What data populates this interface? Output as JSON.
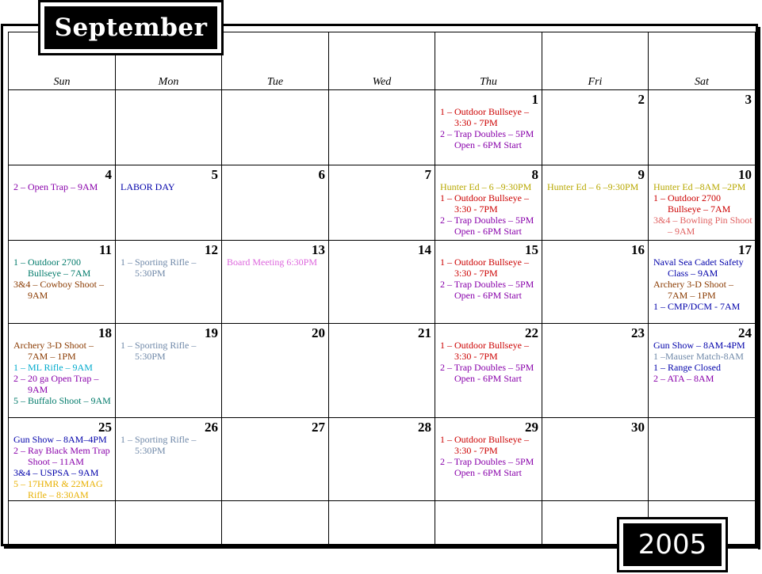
{
  "month": "September",
  "year": "2005",
  "days_of_week": [
    "Sun",
    "Mon",
    "Tue",
    "Wed",
    "Thu",
    "Fri",
    "Sat"
  ],
  "colors": {
    "red": "#cc0000",
    "purple": "#8800aa",
    "blue": "#0000aa",
    "olive": "#b8a800",
    "pink": "#e06060",
    "teal": "#007a6a",
    "brown": "#8a3a00",
    "gray": "#6f88a8",
    "magenta": "#dd66dd",
    "cyan": "#00aacc",
    "orange": "#e8b000"
  },
  "weeks": [
    [
      {
        "day": "",
        "events": []
      },
      {
        "day": "",
        "events": []
      },
      {
        "day": "",
        "events": []
      },
      {
        "day": "",
        "events": []
      },
      {
        "day": "1",
        "events": [
          {
            "text": "1 – Outdoor Bullseye – 3:30 - 7PM",
            "color": "red"
          },
          {
            "text": "2 – Trap Doubles – 5PM Open - 6PM Start",
            "color": "purple"
          }
        ]
      },
      {
        "day": "2",
        "events": []
      },
      {
        "day": "3",
        "events": []
      }
    ],
    [
      {
        "day": "4",
        "events": [
          {
            "text": "2 – Open Trap – 9AM",
            "color": "purple"
          }
        ]
      },
      {
        "day": "5",
        "events": [
          {
            "text": "LABOR DAY",
            "color": "blue"
          }
        ]
      },
      {
        "day": "6",
        "events": []
      },
      {
        "day": "7",
        "events": []
      },
      {
        "day": "8",
        "events": [
          {
            "text": "Hunter Ed – 6 –9:30PM",
            "color": "olive"
          },
          {
            "text": "1 – Outdoor Bullseye – 3:30 - 7PM",
            "color": "red"
          },
          {
            "text": "2 – Trap Doubles – 5PM Open - 6PM Start",
            "color": "purple"
          }
        ]
      },
      {
        "day": "9",
        "events": [
          {
            "text": "Hunter Ed – 6 –9:30PM",
            "color": "olive"
          }
        ]
      },
      {
        "day": "10",
        "events": [
          {
            "text": "Hunter Ed –8AM –2PM",
            "color": "olive"
          },
          {
            "text": "1 – Outdoor 2700 Bullseye – 7AM",
            "color": "red"
          },
          {
            "text": "3&4 – Bowling Pin Shoot – 9AM",
            "color": "pink"
          }
        ]
      }
    ],
    [
      {
        "day": "11",
        "events": [
          {
            "text": "1 – Outdoor 2700 Bullseye – 7AM",
            "color": "teal"
          },
          {
            "text": "3&4 – Cowboy Shoot – 9AM",
            "color": "brown"
          }
        ]
      },
      {
        "day": "12",
        "events": [
          {
            "text": "1 – Sporting Rifle – 5:30PM",
            "color": "gray"
          }
        ]
      },
      {
        "day": "13",
        "events": [
          {
            "text": "Board Meeting 6:30PM",
            "color": "magenta"
          }
        ]
      },
      {
        "day": "14",
        "events": []
      },
      {
        "day": "15",
        "events": [
          {
            "text": "1 – Outdoor Bullseye – 3:30 - 7PM",
            "color": "red"
          },
          {
            "text": "2 – Trap Doubles – 5PM Open - 6PM Start",
            "color": "purple"
          }
        ]
      },
      {
        "day": "16",
        "events": []
      },
      {
        "day": "17",
        "events": [
          {
            "text": "Naval Sea Cadet Safety Class – 9AM",
            "color": "blue"
          },
          {
            "text": "Archery 3-D Shoot – 7AM – 1PM",
            "color": "brown"
          },
          {
            "text": "1 – CMP/DCM - 7AM",
            "color": "blue"
          }
        ]
      }
    ],
    [
      {
        "day": "18",
        "events": [
          {
            "text": "Archery 3-D Shoot – 7AM – 1PM",
            "color": "brown"
          },
          {
            "text": "1 – ML Rifle – 9AM",
            "color": "cyan"
          },
          {
            "text": "2 – 20 ga Open Trap – 9AM",
            "color": "purple"
          },
          {
            "text": "5 – Buffalo Shoot – 9AM",
            "color": "teal"
          }
        ]
      },
      {
        "day": "19",
        "events": [
          {
            "text": "1 – Sporting Rifle – 5:30PM",
            "color": "gray"
          }
        ]
      },
      {
        "day": "20",
        "events": []
      },
      {
        "day": "21",
        "events": []
      },
      {
        "day": "22",
        "events": [
          {
            "text": "1 – Outdoor Bullseye – 3:30 - 7PM",
            "color": "red"
          },
          {
            "text": "2 – Trap Doubles – 5PM Open - 6PM Start",
            "color": "purple"
          }
        ]
      },
      {
        "day": "23",
        "events": []
      },
      {
        "day": "24",
        "events": [
          {
            "text": "Gun Show – 8AM-4PM",
            "color": "blue"
          },
          {
            "text": "1 –Mauser Match-8AM",
            "color": "gray"
          },
          {
            "text": "1 – Range Closed",
            "color": "blue"
          },
          {
            "text": "2 – ATA – 8AM",
            "color": "purple"
          }
        ]
      }
    ],
    [
      {
        "day": "25",
        "events": [
          {
            "text": "Gun Show – 8AM–4PM",
            "color": "blue"
          },
          {
            "text": "2 – Ray Black Mem Trap Shoot – 11AM",
            "color": "purple"
          },
          {
            "text": "3&4 – USPSA – 9AM",
            "color": "blue"
          },
          {
            "text": "5 – 17HMR & 22MAG Rifle – 8:30AM",
            "color": "orange"
          }
        ]
      },
      {
        "day": "26",
        "events": [
          {
            "text": "1 – Sporting Rifle – 5:30PM",
            "color": "gray"
          }
        ]
      },
      {
        "day": "27",
        "events": []
      },
      {
        "day": "28",
        "events": []
      },
      {
        "day": "29",
        "events": [
          {
            "text": "1 – Outdoor Bullseye – 3:30 - 7PM",
            "color": "red"
          },
          {
            "text": "2 – Trap Doubles – 5PM Open - 6PM Start",
            "color": "purple"
          }
        ]
      },
      {
        "day": "30",
        "events": []
      },
      {
        "day": "",
        "events": []
      }
    ],
    [
      {
        "day": "",
        "events": []
      },
      {
        "day": "",
        "events": []
      },
      {
        "day": "",
        "events": []
      },
      {
        "day": "",
        "events": []
      },
      {
        "day": "",
        "events": []
      },
      {
        "day": "",
        "events": []
      },
      {
        "day": "",
        "events": []
      }
    ]
  ]
}
